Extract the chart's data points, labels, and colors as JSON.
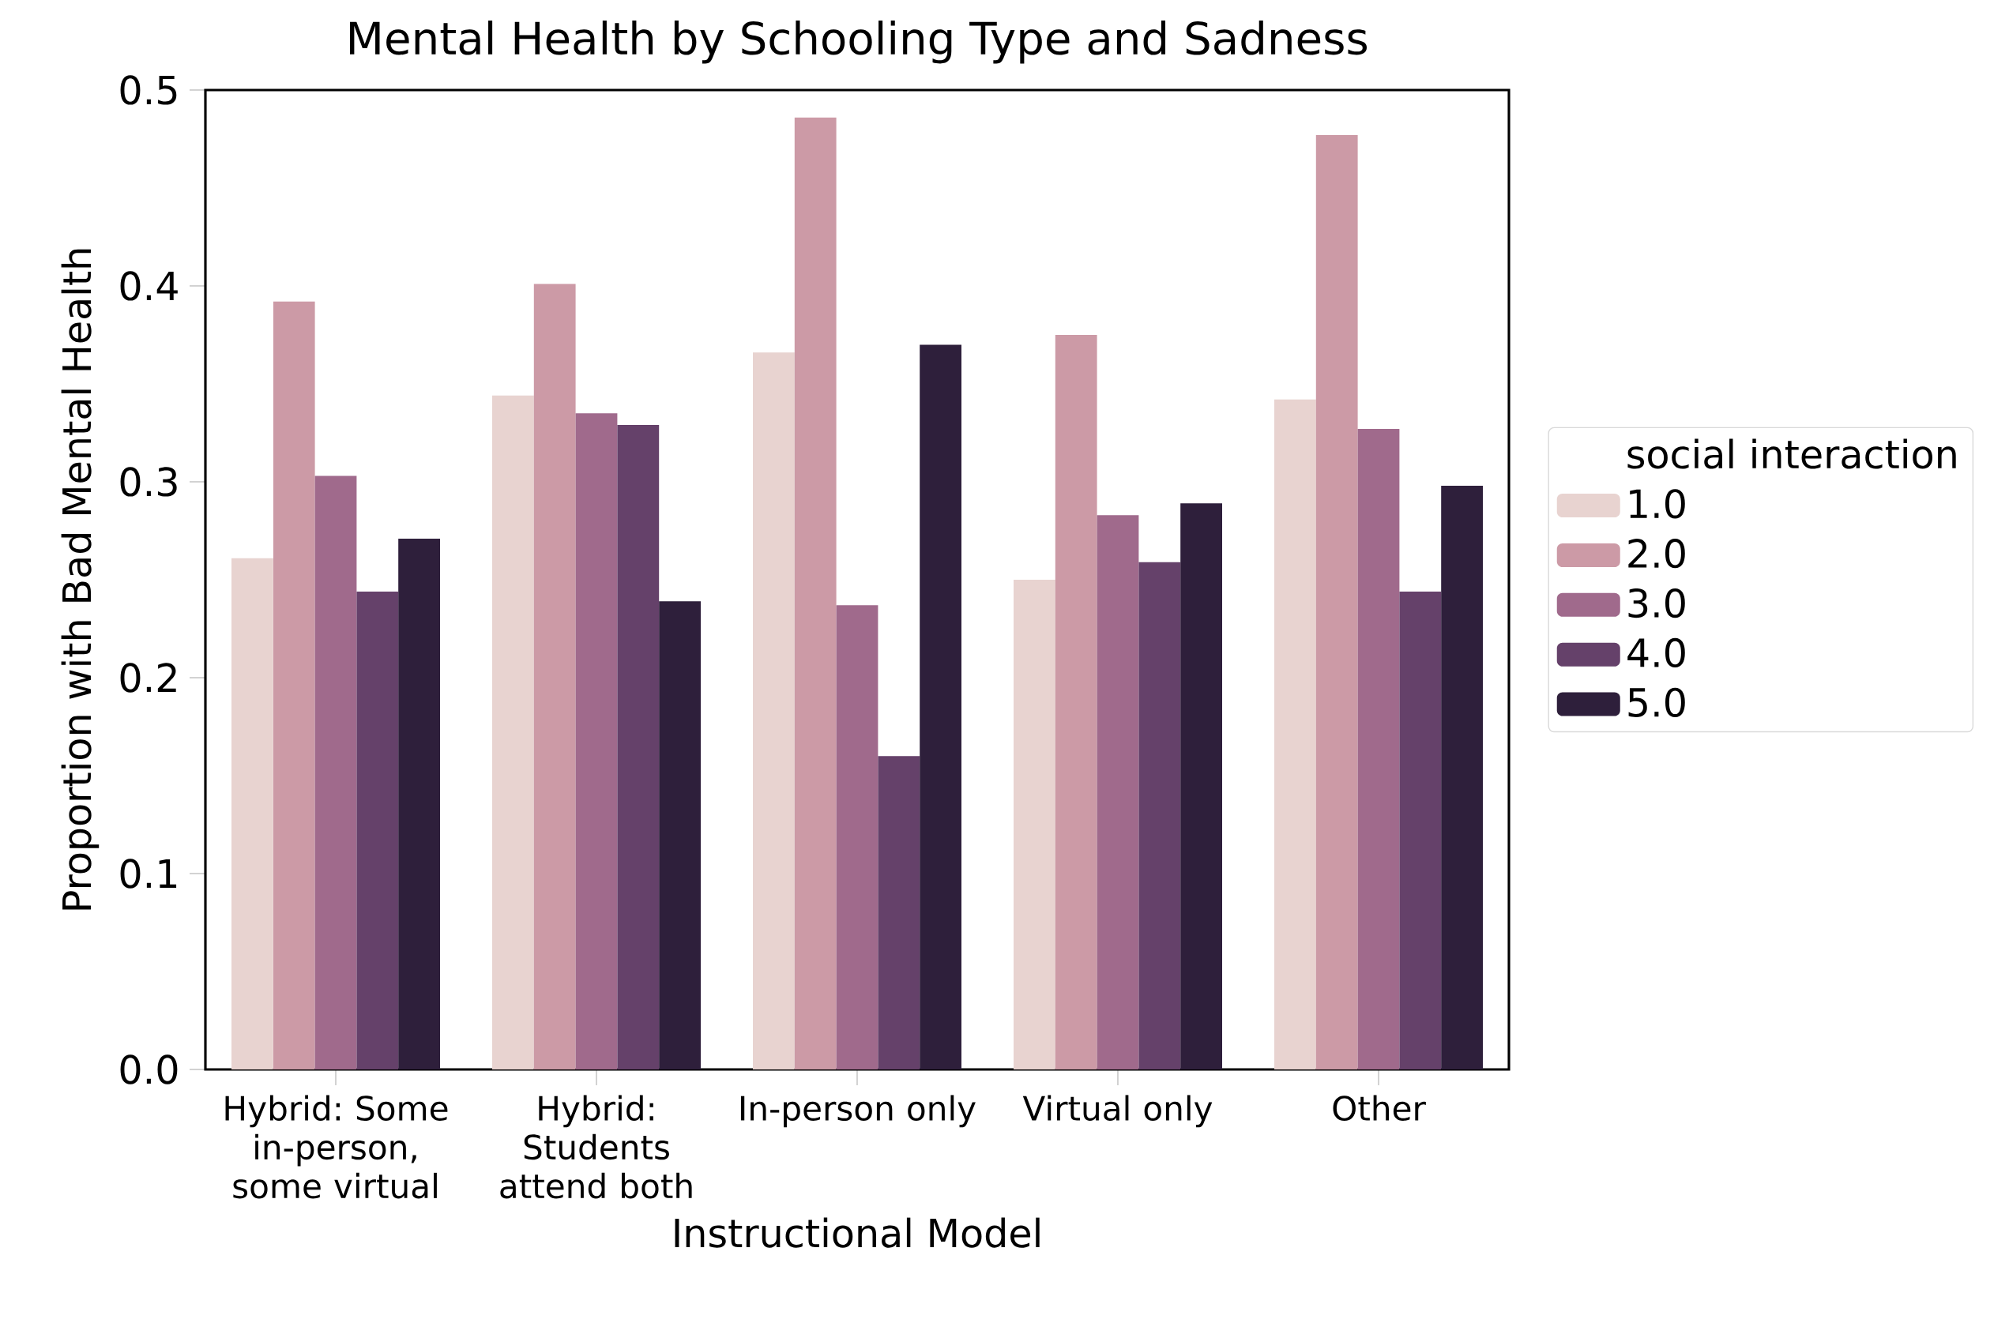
{
  "chart_data": {
    "type": "bar",
    "title": "Mental Health by Schooling Type and Sadness",
    "xlabel": "Instructional Model",
    "ylabel": "Proportion with Bad Mental Health",
    "legend_title": "social interaction",
    "legend": "right",
    "categories": [
      "Hybrid: Some in-person, some virtual",
      "Hybrid: Students attend both",
      "In-person only",
      "Virtual only",
      "Other"
    ],
    "ylim": [
      0,
      0.5
    ],
    "yticks": [
      {
        "value": 0,
        "label": "0.0"
      },
      0.1,
      0.2,
      0.3,
      0.4,
      0.5
    ],
    "series": [
      {
        "name": "1.0",
        "color": "#e8d3d0",
        "values": [
          0.261,
          0.344,
          0.366,
          0.25,
          0.342
        ]
      },
      {
        "name": "2.0",
        "color": "#cc9aa6",
        "values": [
          0.392,
          0.401,
          0.486,
          0.375,
          0.477
        ]
      },
      {
        "name": "3.0",
        "color": "#a06a8c",
        "values": [
          0.303,
          0.335,
          0.237,
          0.283,
          0.327
        ]
      },
      {
        "name": "4.0",
        "color": "#65416a",
        "values": [
          0.244,
          0.329,
          0.16,
          0.259,
          0.244
        ]
      },
      {
        "name": "5.0",
        "color": "#2e1f3b",
        "values": [
          0.271,
          0.239,
          0.37,
          0.289,
          0.298
        ]
      }
    ]
  }
}
